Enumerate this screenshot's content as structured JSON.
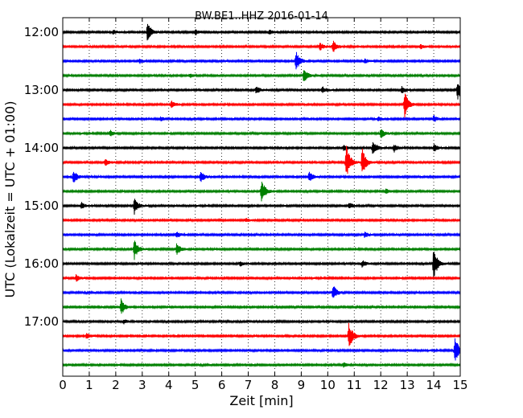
{
  "chart_data": {
    "type": "line",
    "title": "BW.BE1..HHZ 2016-01-14",
    "xlabel": "Zeit  [min]",
    "ylabel": "UTC (Lokalzeit = UTC + 01:00)",
    "xlim": [
      0,
      15
    ],
    "x_ticks": [
      "0",
      "1",
      "2",
      "3",
      "4",
      "5",
      "6",
      "7",
      "8",
      "9",
      "10",
      "11",
      "12",
      "13",
      "14",
      "15"
    ],
    "y_ticks": [
      "12:00",
      "13:00",
      "14:00",
      "15:00",
      "16:00",
      "17:00"
    ],
    "grid": "vertical dotted lines at each minute",
    "trace_colors": [
      "#000000",
      "#ff0000",
      "#0000ff",
      "#008000"
    ],
    "series": [
      {
        "start": "12:00",
        "events": [
          {
            "x": 3.2,
            "amp": 0.9
          },
          {
            "x": 5.0,
            "amp": 0.25
          },
          {
            "x": 7.8,
            "amp": 0.2
          },
          {
            "x": 1.9,
            "amp": 0.18
          }
        ]
      },
      {
        "start": "12:15",
        "events": [
          {
            "x": 10.2,
            "amp": 0.55
          },
          {
            "x": 9.7,
            "amp": 0.35
          },
          {
            "x": 13.5,
            "amp": 0.2
          }
        ]
      },
      {
        "start": "12:30",
        "events": [
          {
            "x": 8.8,
            "amp": 0.9
          },
          {
            "x": 2.9,
            "amp": 0.2
          },
          {
            "x": 11.4,
            "amp": 0.2
          }
        ]
      },
      {
        "start": "12:45",
        "events": [
          {
            "x": 9.1,
            "amp": 0.75
          },
          {
            "x": 4.8,
            "amp": 0.2
          }
        ]
      },
      {
        "start": "13:00",
        "events": [
          {
            "x": 14.9,
            "amp": 0.9
          },
          {
            "x": 7.3,
            "amp": 0.35
          },
          {
            "x": 9.8,
            "amp": 0.3
          },
          {
            "x": 12.8,
            "amp": 0.3
          }
        ]
      },
      {
        "start": "13:15",
        "events": [
          {
            "x": 12.9,
            "amp": 1.2
          },
          {
            "x": 4.1,
            "amp": 0.35
          }
        ]
      },
      {
        "start": "13:30",
        "events": [
          {
            "x": 14.0,
            "amp": 0.3
          },
          {
            "x": 3.7,
            "amp": 0.2
          },
          {
            "x": 11.9,
            "amp": 0.2
          }
        ]
      },
      {
        "start": "13:45",
        "events": [
          {
            "x": 12.0,
            "amp": 0.45
          },
          {
            "x": 1.8,
            "amp": 0.25
          }
        ]
      },
      {
        "start": "14:00",
        "events": [
          {
            "x": 11.7,
            "amp": 0.7
          },
          {
            "x": 12.5,
            "amp": 0.35
          },
          {
            "x": 14.0,
            "amp": 0.35
          },
          {
            "x": 10.6,
            "amp": 0.3
          }
        ]
      },
      {
        "start": "14:15",
        "events": [
          {
            "x": 10.7,
            "amp": 1.6
          },
          {
            "x": 11.3,
            "amp": 1.3
          },
          {
            "x": 1.6,
            "amp": 0.3
          }
        ]
      },
      {
        "start": "14:30",
        "events": [
          {
            "x": 0.4,
            "amp": 0.65
          },
          {
            "x": 5.2,
            "amp": 0.55
          },
          {
            "x": 9.3,
            "amp": 0.45
          }
        ]
      },
      {
        "start": "14:45",
        "events": [
          {
            "x": 7.5,
            "amp": 1.1
          },
          {
            "x": 12.2,
            "amp": 0.2
          }
        ]
      },
      {
        "start": "15:00",
        "events": [
          {
            "x": 2.7,
            "amp": 0.75
          },
          {
            "x": 0.7,
            "amp": 0.3
          },
          {
            "x": 10.8,
            "amp": 0.3
          }
        ]
      },
      {
        "start": "15:15",
        "events": [
          {
            "x": 6.9,
            "amp": 0.15
          }
        ]
      },
      {
        "start": "15:30",
        "events": [
          {
            "x": 4.3,
            "amp": 0.25
          },
          {
            "x": 11.4,
            "amp": 0.25
          }
        ]
      },
      {
        "start": "15:45",
        "events": [
          {
            "x": 2.7,
            "amp": 0.9
          },
          {
            "x": 4.3,
            "amp": 0.55
          }
        ]
      },
      {
        "start": "16:00",
        "events": [
          {
            "x": 14.0,
            "amp": 1.5
          },
          {
            "x": 11.3,
            "amp": 0.3
          },
          {
            "x": 6.7,
            "amp": 0.2
          }
        ]
      },
      {
        "start": "16:15",
        "events": [
          {
            "x": 0.5,
            "amp": 0.3
          }
        ]
      },
      {
        "start": "16:30",
        "events": [
          {
            "x": 10.2,
            "amp": 0.7
          }
        ]
      },
      {
        "start": "16:45",
        "events": [
          {
            "x": 2.2,
            "amp": 0.75
          }
        ]
      },
      {
        "start": "17:00",
        "events": [
          {
            "x": 2.3,
            "amp": 0.2
          }
        ]
      },
      {
        "start": "17:15",
        "events": [
          {
            "x": 10.8,
            "amp": 1.3
          },
          {
            "x": 0.9,
            "amp": 0.25
          }
        ]
      },
      {
        "start": "17:30",
        "events": [
          {
            "x": 14.8,
            "amp": 1.3
          }
        ]
      },
      {
        "start": "17:45",
        "events": [
          {
            "x": 10.6,
            "amp": 0.2
          }
        ]
      }
    ]
  }
}
